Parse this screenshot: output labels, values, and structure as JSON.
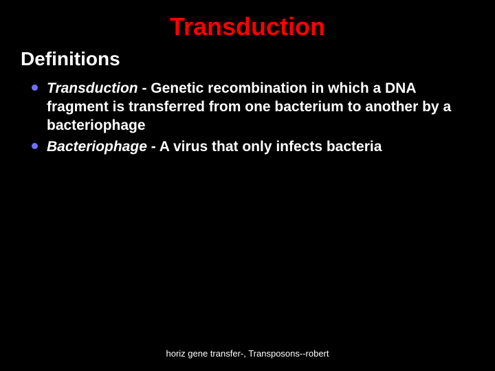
{
  "colors": {
    "background": "#000000",
    "text": "#ffffff",
    "title": "#ff0000",
    "bullet": "#7070ff",
    "footer": "#ffffff"
  },
  "typography": {
    "title_fontsize": 36,
    "subtitle_fontsize": 28,
    "body_fontsize": 21,
    "footer_fontsize": 13,
    "body_lineheight": 1.28
  },
  "title": "Transduction",
  "subtitle": "Definitions",
  "items": [
    {
      "term": "Transduction",
      "definition": " - Genetic recombination in which a DNA fragment is transferred from one bacterium to another by a bacteriophage"
    },
    {
      "term": "Bacteriophage",
      "definition": " - A virus that only infects bacteria"
    }
  ],
  "footer": "horiz gene transfer-,   Transposons--robert"
}
